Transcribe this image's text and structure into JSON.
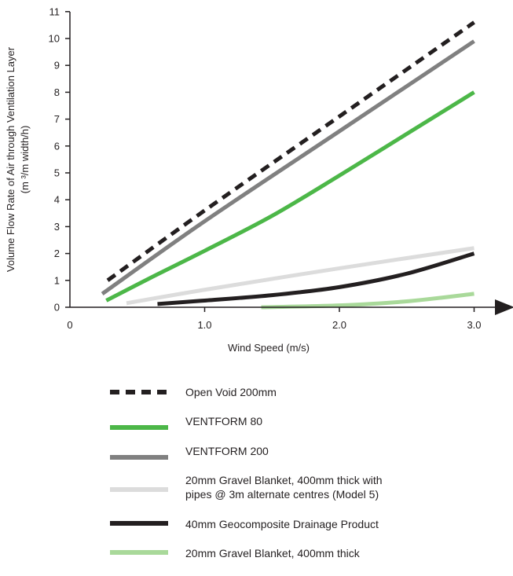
{
  "chart_data": {
    "type": "line",
    "title": "",
    "xlabel": "Wind Speed (m/s)",
    "ylabel": "Volume Flow Rate of Air through Ventilation Layer",
    "ylabel_unit": "(m ³/m width/h)",
    "xlim": [
      0,
      3.2
    ],
    "ylim": [
      0,
      11
    ],
    "x_ticks": [
      "0",
      "1.0",
      "2.0",
      "3.0"
    ],
    "x_tick_values": [
      0,
      1,
      2,
      3
    ],
    "y_ticks": [
      "0",
      "1",
      "2",
      "3",
      "4",
      "5",
      "6",
      "7",
      "8",
      "9",
      "10",
      "11"
    ],
    "y_tick_values": [
      0,
      1,
      2,
      3,
      4,
      5,
      6,
      7,
      8,
      9,
      10,
      11
    ],
    "grid": false,
    "legend_position": "bottom",
    "series": [
      {
        "name": "Open Void 200mm",
        "color": "#231f20",
        "dashed": true,
        "x": [
          0.28,
          1.0,
          2.0,
          3.0
        ],
        "y": [
          1.0,
          3.6,
          7.1,
          10.6
        ]
      },
      {
        "name": "VENTFORM 80",
        "color": "#4cb748",
        "dashed": false,
        "x": [
          0.27,
          0.6,
          1.0,
          1.5,
          2.0,
          2.5,
          3.0
        ],
        "y": [
          0.25,
          1.1,
          2.1,
          3.4,
          4.9,
          6.45,
          8.0
        ]
      },
      {
        "name": "VENTFORM 200",
        "color": "#808080",
        "dashed": false,
        "x": [
          0.24,
          1.0,
          2.0,
          3.0
        ],
        "y": [
          0.5,
          3.2,
          6.55,
          9.9
        ]
      },
      {
        "name": "20mm Gravel Blanket, 400mm thick with\npipes @ 3m alternate centres (Model 5)",
        "color": "#dcdcdc",
        "dashed": false,
        "x": [
          0.42,
          1.0,
          2.0,
          3.0
        ],
        "y": [
          0.15,
          0.65,
          1.45,
          2.2
        ]
      },
      {
        "name": "40mm Geocomposite Drainage Product",
        "color": "#231f20",
        "dashed": false,
        "x": [
          0.65,
          1.0,
          1.5,
          2.0,
          2.5,
          3.0
        ],
        "y": [
          0.12,
          0.25,
          0.45,
          0.75,
          1.25,
          2.0
        ]
      },
      {
        "name": "20mm Gravel Blanket, 400mm thick",
        "color": "#a9d99a",
        "dashed": false,
        "x": [
          1.42,
          2.0,
          2.5,
          3.0
        ],
        "y": [
          0.0,
          0.07,
          0.22,
          0.5
        ]
      }
    ]
  }
}
